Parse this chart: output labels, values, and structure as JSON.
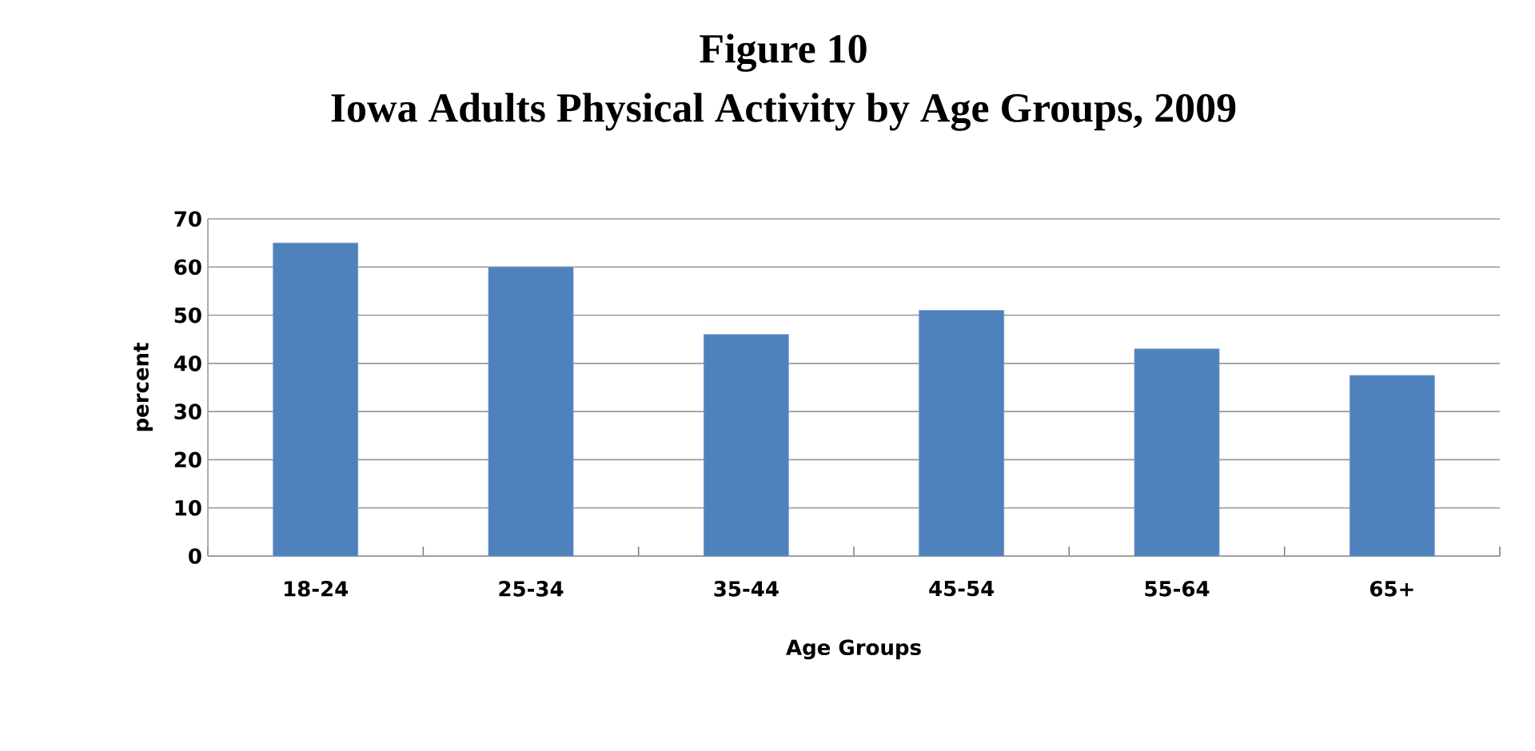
{
  "chart_data": {
    "type": "bar",
    "title": "Figure  10",
    "subtitle": "Iowa Adults Physical Activity by Age Groups, 2009",
    "xlabel": "Age Groups",
    "ylabel": "percent",
    "categories": [
      "18-24",
      "25-34",
      "35-44",
      "45-54",
      "55-64",
      "65+"
    ],
    "values": [
      65,
      60,
      46,
      51,
      43,
      37.5
    ],
    "color": "#4f81bd",
    "ylim": [
      0,
      70
    ],
    "yticks": [
      0,
      10,
      20,
      30,
      40,
      50,
      60,
      70
    ],
    "grid": "y"
  }
}
